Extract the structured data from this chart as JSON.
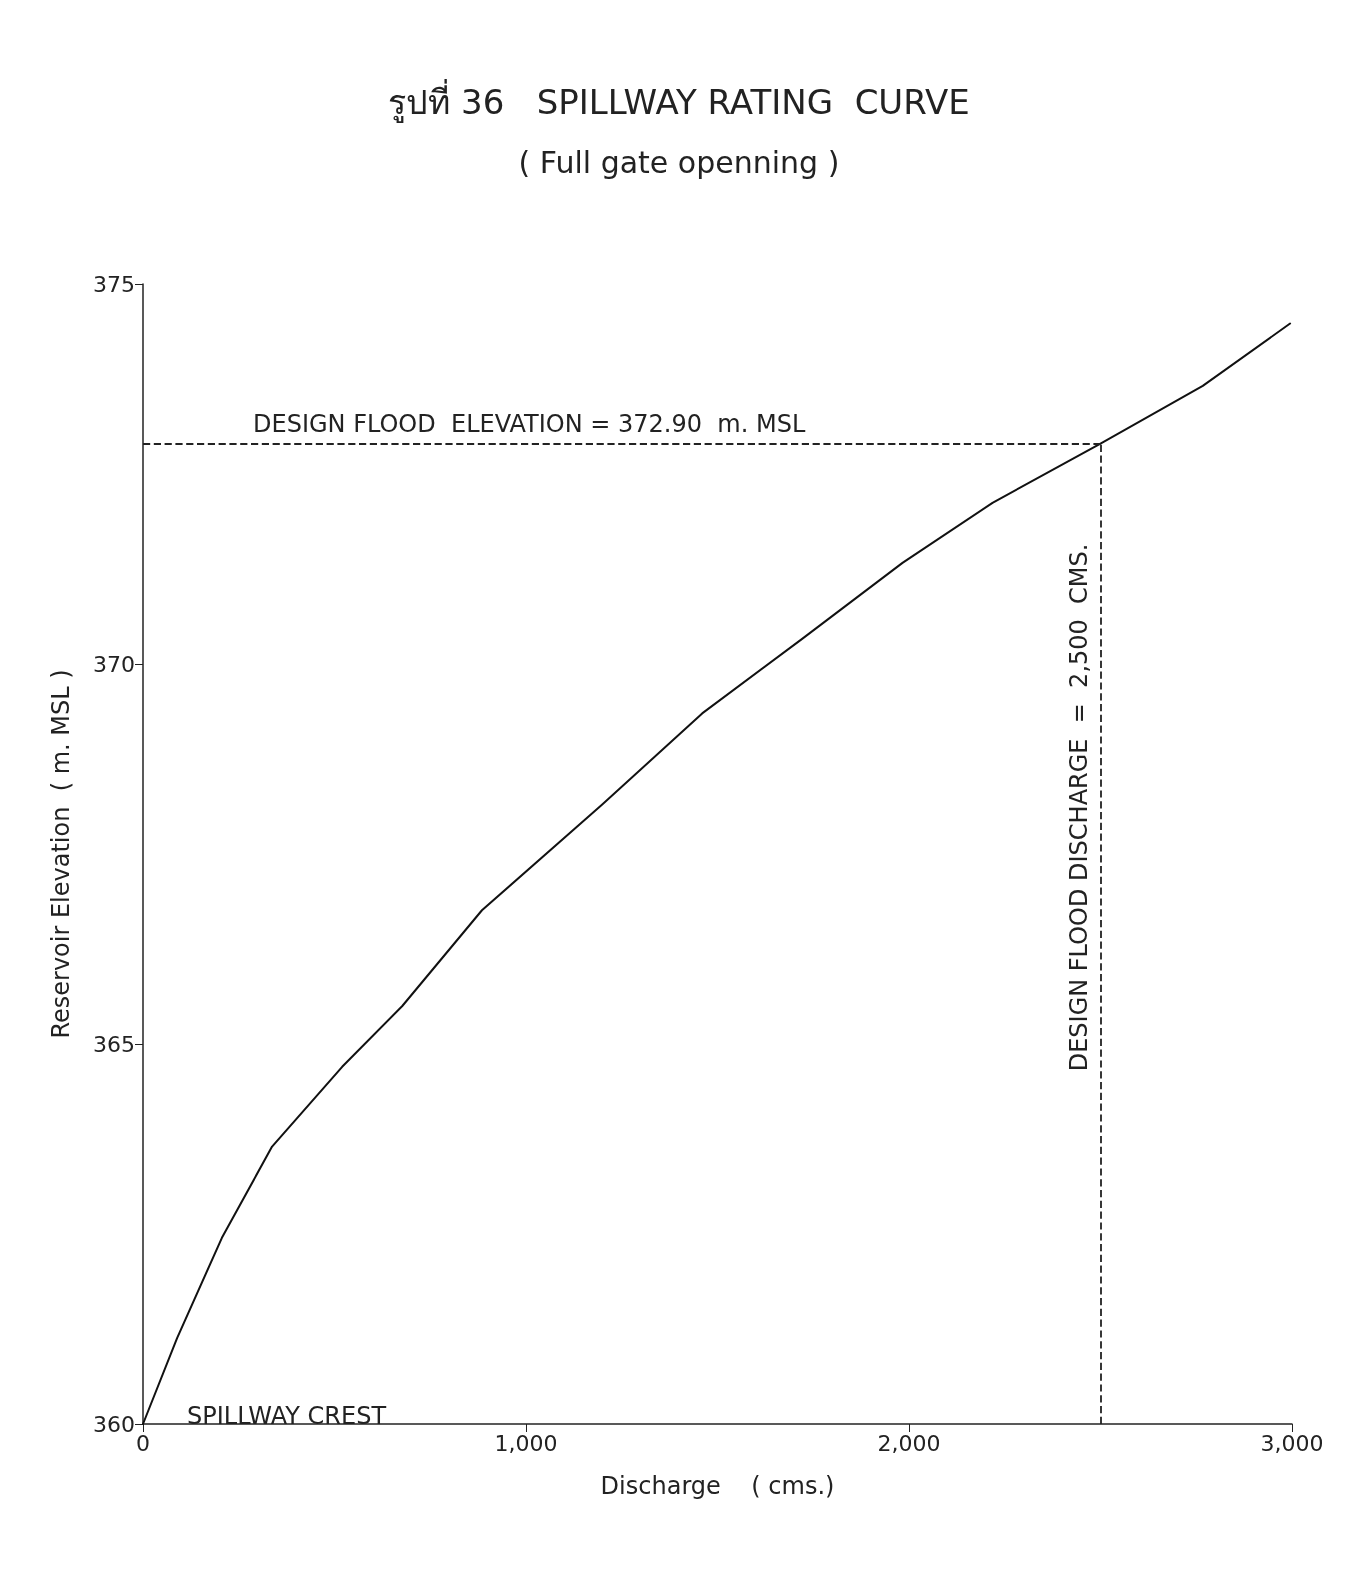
{
  "chart_data": {
    "type": "line",
    "title": "รูปที่ 36   SPILLWAY RATING  CURVE",
    "subtitle": "( Full gate openning )",
    "xlabel": "Discharge    ( cms.)",
    "ylabel": "Reservoir Elevation  ( m. MSL )",
    "x": [
      0,
      89,
      206,
      337,
      520,
      677,
      885,
      1199,
      1460,
      1721,
      1983,
      2218,
      2500,
      2767,
      2995
    ],
    "series": [
      {
        "color": "#111111",
        "values": [
          360,
          361.13,
          362.45,
          363.65,
          364.7,
          365.5,
          366.76,
          368.15,
          369.35,
          370.33,
          371.33,
          372.12,
          372.9,
          373.66,
          374.48
        ]
      }
    ],
    "xlim": [
      0,
      3000
    ],
    "xticks": [
      0,
      {
        "value": 1000,
        "label": "1,000"
      },
      {
        "value": 2000,
        "label": "2,000"
      },
      {
        "value": 3000,
        "label": "3,000"
      }
    ],
    "ylim": [
      360,
      375
    ],
    "yticks": [
      360,
      365,
      370,
      375
    ],
    "ref_lines": [
      {
        "axis": "y",
        "value": 372.9,
        "label": "DESIGN FLOOD  ELEVATION = 372.90  m. MSL",
        "line_style": "dashed"
      },
      {
        "axis": "x",
        "value": 2500,
        "label": "DESIGN FLOOD DISCHARGE  =  2,500  CMS.",
        "line_style": "dashed"
      }
    ],
    "annotations": [
      {
        "text": "SPILLWAY CREST",
        "x": 0,
        "y": 360
      }
    ],
    "grid": false,
    "marker": "none",
    "line_style": "solid"
  }
}
